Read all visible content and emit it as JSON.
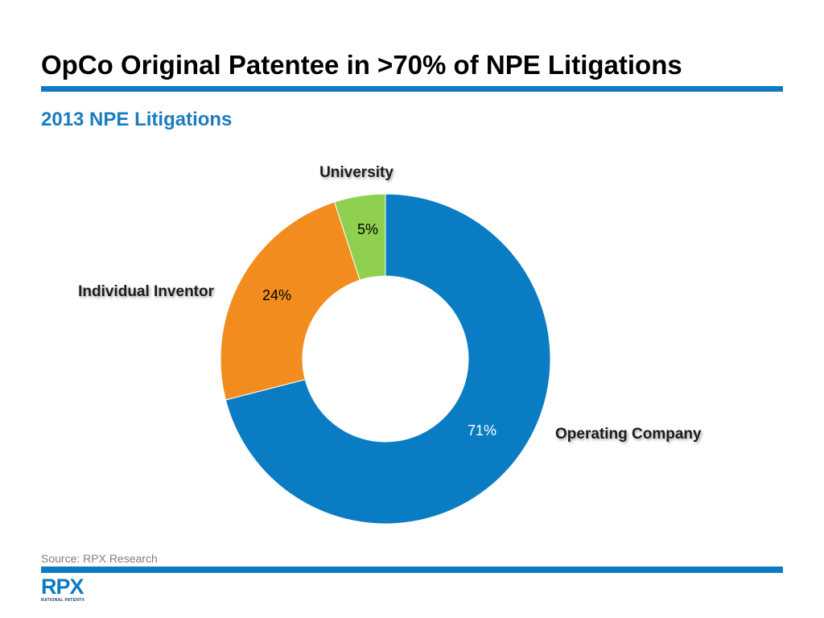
{
  "colors": {
    "accent": "#0f7ac4",
    "subtitle": "#1a7cc1",
    "navy": "#1f3e6e",
    "slices": [
      "#0a7cc4",
      "#f28c1f",
      "#8fd14f"
    ]
  },
  "header": {
    "title": "OpCo Original Patentee in >70% of NPE Litigations",
    "subtitle": "2013 NPE Litigations"
  },
  "chart_data": {
    "type": "pie",
    "subtype": "donut",
    "title": "2013 NPE Litigations",
    "categories": [
      "Operating Company",
      "Individual Inventor",
      "University"
    ],
    "values": [
      71,
      24,
      5
    ],
    "value_labels": [
      "71%",
      "24%",
      "5%"
    ],
    "legend": "none",
    "label_colors": [
      "#ffffff",
      "#000000",
      "#000000"
    ]
  },
  "footer": {
    "source": "Source: RPX Research",
    "logo_mark": "RPX",
    "logo_sub": "RATIONAL PATENT®"
  }
}
